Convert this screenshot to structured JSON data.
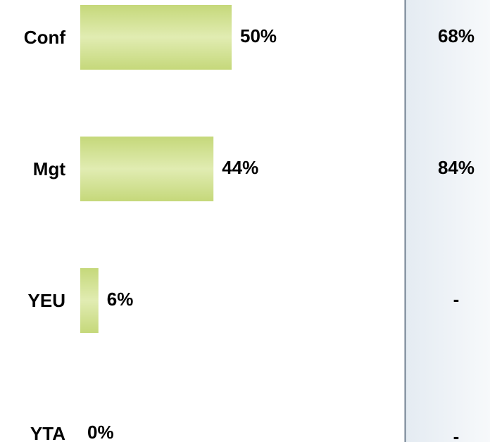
{
  "chart_data": {
    "type": "bar",
    "orientation": "horizontal",
    "categories": [
      "Conf",
      "Mgt",
      "YEU",
      "YTA"
    ],
    "values": [
      50,
      44,
      6,
      0
    ],
    "value_labels": [
      "50%",
      "44%",
      "6%",
      "0%"
    ],
    "color": "#c5d87a"
  },
  "side_column": [
    "68%",
    "84%",
    "-",
    "-"
  ]
}
